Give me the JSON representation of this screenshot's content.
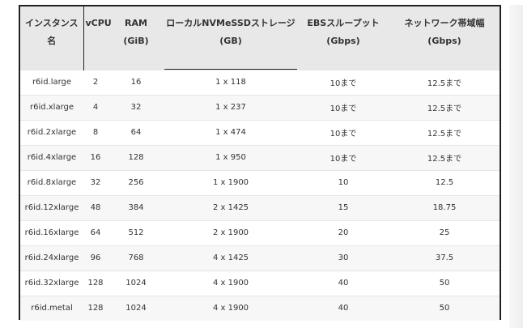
{
  "table": {
    "headers": [
      [
        "インスタンス",
        "名"
      ],
      [
        "vCPU",
        ""
      ],
      [
        "RAM",
        "(GiB)"
      ],
      [
        "ローカルNVMeSSDストレージ",
        "(GB)"
      ],
      [
        "EBSスループット",
        "(Gbps)"
      ],
      [
        "ネットワーク帯域幅",
        "(Gbps)"
      ]
    ],
    "rows": [
      [
        "r6id.large",
        "2",
        "16",
        "1 x 118",
        "10まで",
        "12.5まで"
      ],
      [
        "r6id.xlarge",
        "4",
        "32",
        "1 x 237",
        "10まで",
        "12.5まで"
      ],
      [
        "r6id.2xlarge",
        "8",
        "64",
        "1 x 474",
        "10まで",
        "12.5まで"
      ],
      [
        "r6id.4xlarge",
        "16",
        "128",
        "1 x 950",
        "10まで",
        "12.5まで"
      ],
      [
        "r6id.8xlarge",
        "32",
        "256",
        "1 x 1900",
        "10",
        "12.5"
      ],
      [
        "r6id.12xlarge",
        "48",
        "384",
        "2 x 1425",
        "15",
        "18.75"
      ],
      [
        "r6id.16xlarge",
        "64",
        "512",
        "2 x 1900",
        "20",
        "25"
      ],
      [
        "r6id.24xlarge",
        "96",
        "768",
        "4 x 1425",
        "30",
        "37.5"
      ],
      [
        "r6id.32xlarge",
        "128",
        "1024",
        "4 x 1900",
        "40",
        "50"
      ],
      [
        "r6id.metal",
        "128",
        "1024",
        "4 x 1900",
        "40",
        "50"
      ]
    ]
  }
}
